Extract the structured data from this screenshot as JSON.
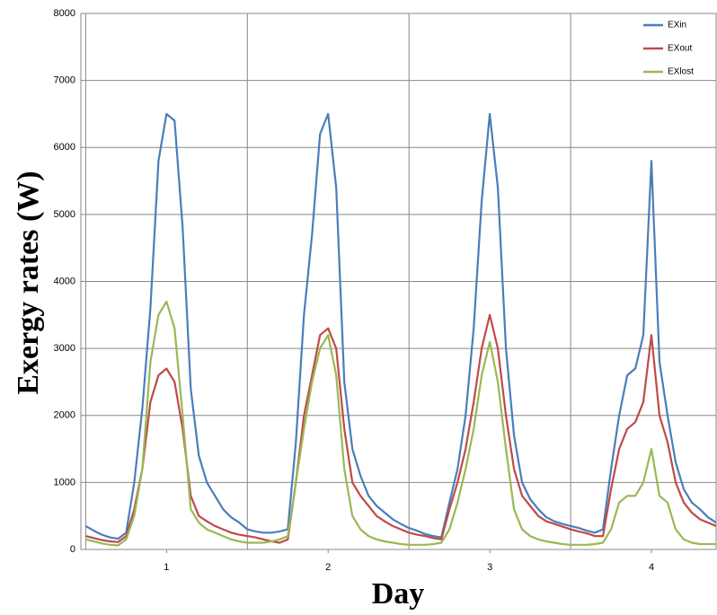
{
  "chart_data": {
    "type": "line",
    "xlabel": "Day",
    "ylabel": "Exergy rates (W)",
    "xlim": [
      0.47,
      4.4
    ],
    "xticks": [
      1,
      2,
      3,
      4
    ],
    "xgrid": [
      0.5,
      1.5,
      2.5,
      3.5
    ],
    "ylim": [
      0,
      8000
    ],
    "yticks": [
      0,
      1000,
      2000,
      3000,
      4000,
      5000,
      6000,
      7000,
      8000
    ],
    "grid": true,
    "legend": "top-right",
    "x": [
      0.5,
      0.55,
      0.6,
      0.65,
      0.7,
      0.75,
      0.8,
      0.85,
      0.9,
      0.95,
      1.0,
      1.05,
      1.1,
      1.15,
      1.2,
      1.25,
      1.3,
      1.35,
      1.4,
      1.45,
      1.5,
      1.55,
      1.6,
      1.65,
      1.7,
      1.75,
      1.8,
      1.85,
      1.9,
      1.95,
      2.0,
      2.05,
      2.1,
      2.15,
      2.2,
      2.25,
      2.3,
      2.35,
      2.4,
      2.45,
      2.5,
      2.55,
      2.6,
      2.65,
      2.7,
      2.75,
      2.8,
      2.85,
      2.9,
      2.95,
      3.0,
      3.05,
      3.1,
      3.15,
      3.2,
      3.25,
      3.3,
      3.35,
      3.4,
      3.45,
      3.5,
      3.55,
      3.6,
      3.65,
      3.7,
      3.75,
      3.8,
      3.85,
      3.9,
      3.95,
      4.0,
      4.05,
      4.1,
      4.15,
      4.2,
      4.25,
      4.3,
      4.35,
      4.4
    ],
    "series": [
      {
        "name": "EXin",
        "color": "#4a7ebb",
        "values": [
          350,
          280,
          220,
          180,
          160,
          250,
          1000,
          2100,
          3600,
          5800,
          6500,
          6400,
          4800,
          2400,
          1400,
          1000,
          800,
          600,
          480,
          400,
          300,
          270,
          250,
          250,
          270,
          300,
          1600,
          3500,
          4700,
          6200,
          6500,
          5400,
          2500,
          1500,
          1100,
          800,
          650,
          550,
          450,
          380,
          320,
          280,
          230,
          200,
          180,
          700,
          1200,
          2000,
          3300,
          5200,
          6500,
          5400,
          3000,
          1700,
          1000,
          750,
          600,
          480,
          420,
          380,
          350,
          320,
          280,
          250,
          300,
          1200,
          2000,
          2600,
          2700,
          3200,
          5800,
          2800,
          2000,
          1300,
          900,
          700,
          600,
          480,
          400
        ]
      },
      {
        "name": "EXout",
        "color": "#be4b48",
        "values": [
          200,
          170,
          140,
          120,
          110,
          200,
          600,
          1200,
          2200,
          2600,
          2700,
          2500,
          1800,
          800,
          500,
          420,
          350,
          300,
          250,
          220,
          200,
          180,
          150,
          120,
          100,
          150,
          1000,
          2000,
          2600,
          3200,
          3300,
          3000,
          1800,
          1000,
          800,
          650,
          500,
          420,
          350,
          300,
          250,
          220,
          200,
          170,
          150,
          600,
          1000,
          1500,
          2200,
          3000,
          3500,
          3000,
          2000,
          1200,
          800,
          650,
          500,
          420,
          380,
          340,
          300,
          270,
          240,
          200,
          200,
          900,
          1500,
          1800,
          1900,
          2200,
          3200,
          2000,
          1600,
          1000,
          700,
          550,
          450,
          400,
          350
        ]
      },
      {
        "name": "EXlost",
        "color": "#98b954",
        "values": [
          150,
          120,
          90,
          70,
          60,
          150,
          500,
          1200,
          2800,
          3500,
          3700,
          3300,
          2000,
          600,
          400,
          300,
          250,
          200,
          150,
          120,
          100,
          100,
          100,
          120,
          150,
          200,
          1000,
          1800,
          2500,
          3000,
          3200,
          2600,
          1200,
          500,
          300,
          200,
          150,
          120,
          100,
          80,
          70,
          70,
          70,
          80,
          100,
          300,
          700,
          1200,
          1800,
          2600,
          3100,
          2500,
          1500,
          600,
          300,
          200,
          150,
          120,
          100,
          80,
          70,
          70,
          70,
          80,
          100,
          300,
          700,
          800,
          800,
          1000,
          1500,
          800,
          700,
          300,
          150,
          100,
          80,
          80,
          80
        ]
      }
    ]
  }
}
